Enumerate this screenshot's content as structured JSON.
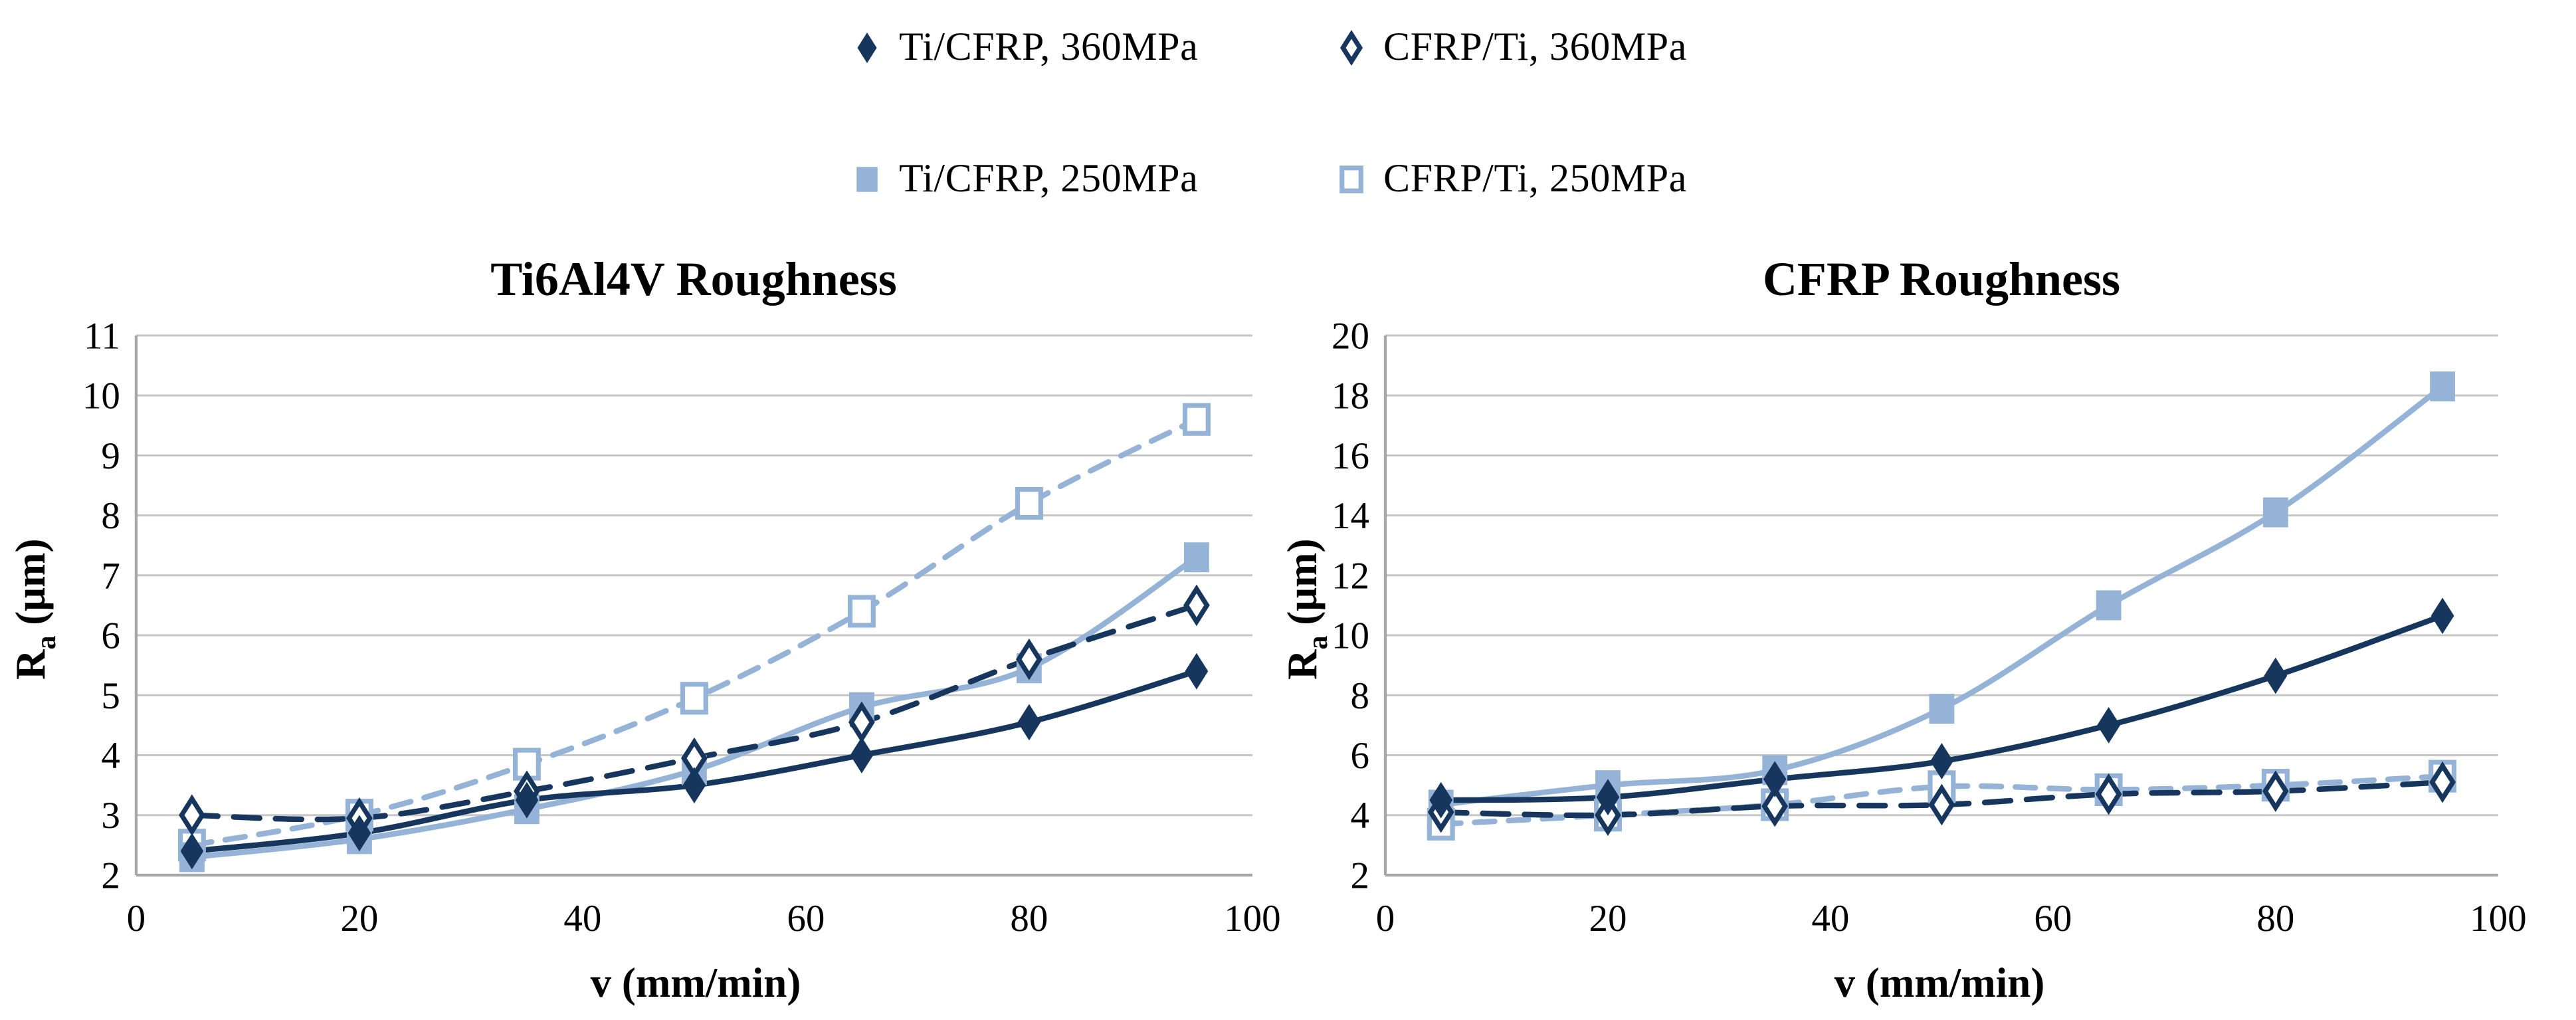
{
  "page": {
    "background": "#FFFFFF",
    "kind": "dual scatter chart figure"
  },
  "colors": {
    "dark_blue": "#17365D",
    "light_blue": "#95B3D7",
    "gridline": "#C6C6C6",
    "axis_line": "#A6A6A6",
    "text": "#000000",
    "marker_open_fill": "#FFFFFF"
  },
  "legend": {
    "items": [
      {
        "label": "Ti/CFRP, 360MPa",
        "marker": "diamond-filled",
        "color": "dark"
      },
      {
        "label": "CFRP/Ti, 360MPa",
        "marker": "diamond-open",
        "color": "dark"
      },
      {
        "label": "Ti/CFRP, 250MPa",
        "marker": "square-filled",
        "color": "light"
      },
      {
        "label": "CFRP/Ti, 250MPa",
        "marker": "square-open",
        "color": "light"
      }
    ]
  },
  "chart_data": [
    {
      "type": "scatter",
      "title": "Ti6Al4V Roughness",
      "xlabel": "v (mm/min)",
      "ylabel": "Ra (μm)",
      "ylabel_base": "R",
      "ylabel_sub": "a",
      "ylabel_unit": " (μm)",
      "xlim": [
        0,
        100
      ],
      "ylim": [
        2,
        11
      ],
      "x_ticks": [
        0,
        20,
        40,
        60,
        80,
        100
      ],
      "y_ticks": [
        2,
        3,
        4,
        5,
        6,
        7,
        8,
        9,
        10,
        11
      ],
      "grid": true,
      "legend_position": "top",
      "x": [
        5,
        20,
        35,
        50,
        65,
        80,
        95
      ],
      "series": [
        {
          "name": "Ti/CFRP, 360MPa",
          "marker": "diamond-filled",
          "line": "solid",
          "color": "dark",
          "values": [
            2.4,
            2.7,
            3.25,
            3.5,
            4.0,
            4.55,
            5.4
          ]
        },
        {
          "name": "CFRP/Ti, 360MPa",
          "marker": "diamond-open",
          "line": "dashed",
          "color": "dark",
          "values": [
            3.0,
            2.95,
            3.4,
            3.95,
            4.55,
            5.6,
            6.5
          ]
        },
        {
          "name": "Ti/CFRP, 250MPa",
          "marker": "square-filled",
          "line": "solid",
          "color": "light",
          "values": [
            2.3,
            2.6,
            3.1,
            3.75,
            4.8,
            5.45,
            7.3
          ]
        },
        {
          "name": "CFRP/Ti, 250MPa",
          "marker": "square-open",
          "line": "dashed",
          "color": "light",
          "values": [
            2.5,
            3.0,
            3.85,
            4.95,
            6.4,
            8.2,
            9.6
          ]
        }
      ]
    },
    {
      "type": "scatter",
      "title": "CFRP Roughness",
      "xlabel": "v (mm/min)",
      "ylabel": "Ra (μm)",
      "ylabel_base": "R",
      "ylabel_sub": "a",
      "ylabel_unit": " (μm)",
      "xlim": [
        0,
        100
      ],
      "ylim": [
        2,
        20
      ],
      "x_ticks": [
        0,
        20,
        40,
        60,
        80,
        100
      ],
      "y_ticks": [
        2,
        4,
        6,
        8,
        10,
        12,
        14,
        16,
        18,
        20
      ],
      "grid": true,
      "legend_position": "top",
      "x": [
        5,
        20,
        35,
        50,
        65,
        80,
        95
      ],
      "series": [
        {
          "name": "Ti/CFRP, 360MPa",
          "marker": "diamond-filled",
          "line": "solid",
          "color": "dark",
          "values": [
            4.5,
            4.6,
            5.2,
            5.8,
            7.0,
            8.65,
            10.65
          ]
        },
        {
          "name": "CFRP/Ti, 360MPa",
          "marker": "diamond-open",
          "line": "dashed",
          "color": "dark",
          "values": [
            4.1,
            4.0,
            4.3,
            4.35,
            4.7,
            4.8,
            5.1
          ]
        },
        {
          "name": "Ti/CFRP, 250MPa",
          "marker": "square-filled",
          "line": "solid",
          "color": "light",
          "values": [
            4.35,
            5.0,
            5.5,
            7.55,
            11.0,
            14.1,
            18.3
          ]
        },
        {
          "name": "CFRP/Ti, 250MPa",
          "marker": "square-open",
          "line": "dashed",
          "color": "light",
          "values": [
            3.7,
            4.0,
            4.35,
            4.95,
            4.85,
            5.0,
            5.3
          ]
        }
      ]
    }
  ]
}
